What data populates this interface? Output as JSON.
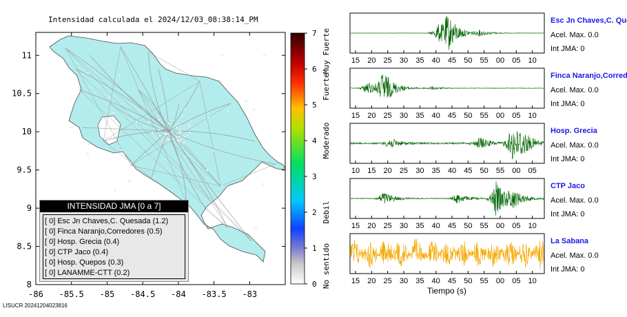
{
  "map": {
    "title": "Intensidad calculada el 2024/12/03_08:38:14_PM",
    "lon_ticks": [
      "-86",
      "-85.5",
      "-85",
      "-84.5",
      "-84",
      "-83.5",
      "-83"
    ],
    "lat_ticks": [
      "11",
      "10.5",
      "10",
      "9.5",
      "9",
      "8.5",
      "8"
    ],
    "colors": {
      "land": "#b3ecec",
      "ocean": "#ffffff",
      "roads": "#9a9a9a"
    }
  },
  "colorbar": {
    "levels": [
      "0",
      "1",
      "2",
      "3",
      "4",
      "5",
      "6",
      "7"
    ],
    "labels": [
      "No sentido",
      "Debil",
      "Moderado",
      "Fuerte",
      "Muy Fuerte"
    ]
  },
  "legend": {
    "header": "INTENSIDAD JMA [0 a 7]",
    "items": [
      "[ 0]  Esc Jn Chaves,C. Quesada (1.2)",
      "[ 0]  Finca Naranjo,Corredores (0.5)",
      "[ 0]  Hosp. Grecia (0.4)",
      "[ 0]  CTP Jaco (0.4)",
      "[ 0]  Hosp. Quepos (0.3)",
      "[ 0]  LANAMME-CTT (0.2)"
    ]
  },
  "stations": [
    {
      "name": "Esc Jn Chaves,C. Quesada",
      "acel": "Acel. Max. 0.0",
      "jma": "Int JMA: 0",
      "ticks": [
        "15",
        "20",
        "25",
        "30",
        "35",
        "40",
        "45",
        "50",
        "55",
        "00",
        "05",
        "10"
      ],
      "color": "#0a6a0a"
    },
    {
      "name": "Finca Naranjo,Corredores",
      "acel": "Acel. Max. 0.0",
      "jma": "Int JMA: 0",
      "ticks": [
        "15",
        "20",
        "25",
        "30",
        "35",
        "40",
        "45",
        "50",
        "55",
        "00",
        "05",
        "10"
      ],
      "color": "#0a6a0a"
    },
    {
      "name": "Hosp. Grecia",
      "acel": "Acel. Max. 0.0",
      "jma": "Int JMA: 0",
      "ticks": [
        "10",
        "15",
        "20",
        "25",
        "30",
        "35",
        "40",
        "45",
        "50",
        "55",
        "00",
        "05"
      ],
      "color": "#0a6a0a"
    },
    {
      "name": "CTP Jaco",
      "acel": "Acel. Max. 0.0",
      "jma": "Int JMA: 0",
      "ticks": [
        "15",
        "20",
        "25",
        "30",
        "35",
        "40",
        "45",
        "50",
        "55",
        "00",
        "05",
        "10"
      ],
      "color": "#0a6a0a"
    },
    {
      "name": "La Sabana",
      "acel": "Acel. Max. 0.0",
      "jma": "Int JMA: 0",
      "ticks": [
        "15",
        "20",
        "25",
        "30",
        "35",
        "40",
        "45",
        "50",
        "55",
        "00",
        "05",
        "10"
      ],
      "color": "#f5a800"
    }
  ],
  "wave_xlabel": "Tiempo (s)",
  "footer": "LISUCR 20241204023816",
  "chart_data": [
    {
      "type": "heatmap",
      "title": "Intensidad calculada el 2024/12/03_08:38:14_PM",
      "xlabel": "",
      "ylabel": "",
      "xlim": [
        -86,
        -82.5
      ],
      "ylim": [
        8,
        11.3
      ],
      "colorbar_range": [
        0,
        7
      ],
      "colorbar_labels": [
        "No sentido",
        "Debil",
        "Moderado",
        "Fuerte",
        "Muy Fuerte"
      ],
      "stations": [
        {
          "name": "Esc Jn Chaves,C. Quesada",
          "jma": 0,
          "value": 1.2
        },
        {
          "name": "Finca Naranjo,Corredores",
          "jma": 0,
          "value": 0.5
        },
        {
          "name": "Hosp. Grecia",
          "jma": 0,
          "value": 0.4
        },
        {
          "name": "CTP Jaco",
          "jma": 0,
          "value": 0.4
        },
        {
          "name": "Hosp. Quepos",
          "jma": 0,
          "value": 0.3
        },
        {
          "name": "LANAMME-CTT",
          "jma": 0,
          "value": 0.2
        }
      ]
    },
    {
      "type": "line",
      "title": "",
      "xlabel": "Tiempo (s)",
      "ylabel": "",
      "series": [
        {
          "name": "Esc Jn Chaves,C. Quesada",
          "bursts": [
            [
              30,
              1.0
            ],
            [
              27,
              0.5
            ],
            [
              40,
              0.15
            ]
          ],
          "noise": 0.02
        },
        {
          "name": "Finca Naranjo,Corredores",
          "bursts": [
            [
              10,
              1.0
            ],
            [
              5,
              0.4
            ],
            [
              25,
              0.08
            ]
          ],
          "noise": 0.05
        },
        {
          "name": "Hosp. Grecia",
          "bursts": [
            [
              50,
              1.0
            ],
            [
              53,
              0.5
            ],
            [
              40,
              0.35
            ],
            [
              12,
              0.3
            ]
          ],
          "noise": 0.18
        },
        {
          "name": "CTP Jaco",
          "bursts": [
            [
              45,
              1.0
            ],
            [
              50,
              0.5
            ],
            [
              33,
              0.3
            ],
            [
              10,
              0.4
            ]
          ],
          "noise": 0.08
        },
        {
          "name": "La Sabana",
          "bursts": [],
          "noise": 0.7
        }
      ]
    }
  ]
}
